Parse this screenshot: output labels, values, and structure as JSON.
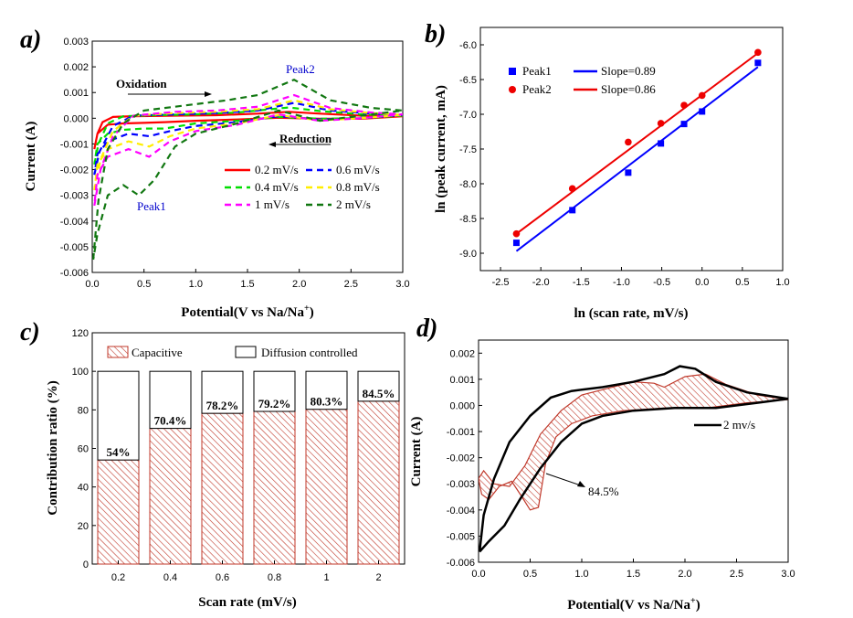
{
  "chart_data": [
    {
      "panel": "a)",
      "type": "line",
      "xlabel": "Potential(V vs Na/Na",
      "xlabel_sup": "+",
      "xlabel_end": ")",
      "ylabel": "Current (A)",
      "xlim": [
        0,
        3.0
      ],
      "ylim": [
        -0.006,
        0.003
      ],
      "xticks": [
        "0.0",
        "0.5",
        "1.0",
        "1.5",
        "2.0",
        "2.5",
        "3.0"
      ],
      "yticks": [
        "-0.006",
        "-0.005",
        "-0.004",
        "-0.003",
        "-0.002",
        "-0.001",
        "0.000",
        "0.001",
        "0.002",
        "0.003"
      ],
      "annotations": {
        "oxidation": "Oxidation",
        "reduction": "Reduction",
        "peak1": "Peak1",
        "peak2": "Peak2"
      },
      "series": [
        {
          "name": "0.2 mV/s",
          "color": "#ff0000",
          "dash": "solid",
          "points": [
            [
              0.02,
              -0.0012
            ],
            [
              0.05,
              -0.0006
            ],
            [
              0.1,
              -0.00015
            ],
            [
              0.2,
              5e-05
            ],
            [
              0.4,
              8e-05
            ],
            [
              0.8,
              0.0001
            ],
            [
              1.2,
              0.00012
            ],
            [
              1.6,
              0.00018
            ],
            [
              1.9,
              0.00025
            ],
            [
              2.2,
              0.00018
            ],
            [
              2.6,
              0.0001
            ],
            [
              3.0,
              8e-05
            ],
            [
              2.6,
              -2e-05
            ],
            [
              2.2,
              -2e-05
            ],
            [
              1.8,
              2e-05
            ],
            [
              1.4,
              -5e-05
            ],
            [
              1.0,
              -0.0001
            ],
            [
              0.7,
              -0.00015
            ],
            [
              0.5,
              -0.00018
            ],
            [
              0.3,
              -0.0002
            ],
            [
              0.15,
              -0.00025
            ],
            [
              0.05,
              -0.0006
            ],
            [
              0.02,
              -0.0012
            ]
          ]
        },
        {
          "name": "0.4 mV/s",
          "color": "#00dd00",
          "dash": "dashed",
          "points": [
            [
              0.02,
              -0.0018
            ],
            [
              0.06,
              -0.001
            ],
            [
              0.15,
              -0.0002
            ],
            [
              0.3,
              8e-05
            ],
            [
              0.6,
              0.00012
            ],
            [
              1.0,
              0.00015
            ],
            [
              1.4,
              0.00022
            ],
            [
              1.9,
              0.00042
            ],
            [
              2.2,
              0.00028
            ],
            [
              2.6,
              0.00015
            ],
            [
              3.0,
              0.0001
            ],
            [
              2.6,
              0.0
            ],
            [
              2.2,
              -2e-05
            ],
            [
              1.8,
              5e-05
            ],
            [
              1.4,
              -0.0001
            ],
            [
              1.0,
              -0.0002
            ],
            [
              0.7,
              -0.0004
            ],
            [
              0.5,
              -0.0004
            ],
            [
              0.3,
              -0.00045
            ],
            [
              0.15,
              -0.0006
            ],
            [
              0.05,
              -0.001
            ],
            [
              0.02,
              -0.0018
            ]
          ]
        },
        {
          "name": "0.6 mV/s",
          "color": "#0000ff",
          "dash": "dashed",
          "points": [
            [
              0.02,
              -0.0022
            ],
            [
              0.07,
              -0.0013
            ],
            [
              0.2,
              -0.0003
            ],
            [
              0.4,
              0.0001
            ],
            [
              0.8,
              0.00015
            ],
            [
              1.2,
              0.0002
            ],
            [
              1.6,
              0.0003
            ],
            [
              1.95,
              0.0006
            ],
            [
              2.3,
              0.0003
            ],
            [
              2.7,
              0.00018
            ],
            [
              3.0,
              0.00012
            ],
            [
              2.6,
              0.0
            ],
            [
              2.2,
              -5e-05
            ],
            [
              1.8,
              8e-05
            ],
            [
              1.4,
              -0.00015
            ],
            [
              1.0,
              -0.0003
            ],
            [
              0.75,
              -0.0005
            ],
            [
              0.55,
              -0.0007
            ],
            [
              0.35,
              -0.0006
            ],
            [
              0.15,
              -0.0009
            ],
            [
              0.05,
              -0.0014
            ],
            [
              0.02,
              -0.0022
            ]
          ]
        },
        {
          "name": "0.8 mV/s",
          "color": "#ffee00",
          "dash": "dashed",
          "points": [
            [
              0.02,
              -0.0028
            ],
            [
              0.08,
              -0.0016
            ],
            [
              0.2,
              -0.0005
            ],
            [
              0.4,
              0.0001
            ],
            [
              0.8,
              0.0002
            ],
            [
              1.2,
              0.00025
            ],
            [
              1.6,
              0.00035
            ],
            [
              1.95,
              0.0007
            ],
            [
              2.3,
              0.00035
            ],
            [
              2.7,
              0.0002
            ],
            [
              3.0,
              0.00013
            ],
            [
              2.6,
              0.0
            ],
            [
              2.2,
              -8e-05
            ],
            [
              1.8,
              0.00012
            ],
            [
              1.4,
              -0.0002
            ],
            [
              1.0,
              -0.0004
            ],
            [
              0.75,
              -0.0007
            ],
            [
              0.55,
              -0.0011
            ],
            [
              0.35,
              -0.0009
            ],
            [
              0.15,
              -0.0012
            ],
            [
              0.05,
              -0.0018
            ],
            [
              0.02,
              -0.0028
            ]
          ]
        },
        {
          "name": "1 mV/s",
          "color": "#ff00ff",
          "dash": "dashed",
          "points": [
            [
              0.02,
              -0.0034
            ],
            [
              0.08,
              -0.002
            ],
            [
              0.2,
              -0.0007
            ],
            [
              0.4,
              0.0001
            ],
            [
              0.8,
              0.00025
            ],
            [
              1.2,
              0.0003
            ],
            [
              1.6,
              0.00045
            ],
            [
              1.95,
              0.0009
            ],
            [
              2.3,
              0.0004
            ],
            [
              2.7,
              0.00022
            ],
            [
              3.0,
              0.00015
            ],
            [
              2.6,
              0.0
            ],
            [
              2.2,
              -0.0001
            ],
            [
              1.8,
              0.00015
            ],
            [
              1.4,
              -0.00025
            ],
            [
              1.0,
              -0.0005
            ],
            [
              0.75,
              -0.0009
            ],
            [
              0.55,
              -0.0015
            ],
            [
              0.35,
              -0.0012
            ],
            [
              0.15,
              -0.0015
            ],
            [
              0.05,
              -0.0022
            ],
            [
              0.02,
              -0.0034
            ]
          ]
        },
        {
          "name": "2 mV/s",
          "color": "#117711",
          "dash": "dashed",
          "points": [
            [
              0.01,
              -0.0055
            ],
            [
              0.06,
              -0.0032
            ],
            [
              0.15,
              -0.0012
            ],
            [
              0.3,
              -0.0002
            ],
            [
              0.5,
              0.0003
            ],
            [
              0.9,
              0.0005
            ],
            [
              1.3,
              0.0007
            ],
            [
              1.6,
              0.0009
            ],
            [
              1.95,
              0.0015
            ],
            [
              2.3,
              0.0007
            ],
            [
              2.7,
              0.0004
            ],
            [
              3.0,
              0.0003
            ],
            [
              2.6,
              0.0001
            ],
            [
              2.2,
              -0.0001
            ],
            [
              1.8,
              0.0003
            ],
            [
              1.4,
              -0.0002
            ],
            [
              1.0,
              -0.0006
            ],
            [
              0.8,
              -0.0011
            ],
            [
              0.6,
              -0.0024
            ],
            [
              0.45,
              -0.003
            ],
            [
              0.3,
              -0.0026
            ],
            [
              0.15,
              -0.003
            ],
            [
              0.05,
              -0.0045
            ],
            [
              0.01,
              -0.0055
            ]
          ]
        }
      ]
    },
    {
      "panel": "b)",
      "type": "scatter",
      "xlabel": "ln (scan rate, mV/s)",
      "ylabel": "ln (peak current, mA)",
      "xlim": [
        -2.75,
        1.0
      ],
      "ylim": [
        -9.25,
        -5.75
      ],
      "xticks": [
        "-2.5",
        "-2.0",
        "-1.5",
        "-1.0",
        "-0.5",
        "0.0",
        "0.5",
        "1.0"
      ],
      "yticks": [
        "-9.0",
        "-8.5",
        "-8.0",
        "-7.5",
        "-7.0",
        "-6.5",
        "-6.0"
      ],
      "series": [
        {
          "name": "Peak1",
          "marker": "square",
          "color": "#0000ff",
          "x": [
            -2.303,
            -1.609,
            -0.916,
            -0.511,
            -0.223,
            0.0,
            0.693
          ],
          "y": [
            -8.85,
            -8.38,
            -7.84,
            -7.42,
            -7.14,
            -6.96,
            -6.26
          ],
          "fit_label": "Slope=0.89",
          "fit": [
            [
              -2.303,
              -8.97
            ],
            [
              0.693,
              -6.32
            ]
          ]
        },
        {
          "name": "Peak2",
          "marker": "circle",
          "color": "#ee0000",
          "x": [
            -2.303,
            -1.609,
            -0.916,
            -0.511,
            -0.223,
            0.0,
            0.693
          ],
          "y": [
            -8.72,
            -8.07,
            -7.4,
            -7.13,
            -6.87,
            -6.73,
            -6.11
          ],
          "fit_label": "Slope=0.86",
          "fit": [
            [
              -2.303,
              -8.72
            ],
            [
              0.693,
              -6.12
            ]
          ]
        }
      ]
    },
    {
      "panel": "c)",
      "type": "bar",
      "xlabel": "Scan rate (mV/s)",
      "ylabel": "Contribution ratio (%)",
      "ylim": [
        0,
        120
      ],
      "yticks": [
        "0",
        "20",
        "40",
        "60",
        "80",
        "100",
        "120"
      ],
      "categories": [
        "0.2",
        "0.4",
        "0.6",
        "0.8",
        "1",
        "2"
      ],
      "series": [
        {
          "name": "Capacitive",
          "values": [
            54,
            70.4,
            78.2,
            79.2,
            80.3,
            84.5
          ]
        },
        {
          "name": "Diffusion controlled",
          "values": [
            46,
            29.6,
            21.8,
            20.8,
            19.7,
            15.5
          ]
        }
      ],
      "data_labels": [
        "54%",
        "70.4%",
        "78.2%",
        "79.2%",
        "80.3%",
        "84.5%"
      ]
    },
    {
      "panel": "d)",
      "type": "area",
      "xlabel": "Potential(V vs Na/Na",
      "xlabel_sup": "+",
      "xlabel_end": ")",
      "ylabel": "Current (A)",
      "xlim": [
        0,
        3.0
      ],
      "ylim": [
        -0.006,
        0.0025
      ],
      "xticks": [
        "0.0",
        "0.5",
        "1.0",
        "1.5",
        "2.0",
        "2.5",
        "3.0"
      ],
      "yticks": [
        "-0.006",
        "-0.005",
        "-0.004",
        "-0.003",
        "-0.002",
        "-0.001",
        "0.000",
        "0.001",
        "0.002"
      ],
      "legend": "2 mv/s",
      "annotation": "84.5%",
      "total": [
        [
          0.01,
          -0.0056
        ],
        [
          0.05,
          -0.0042
        ],
        [
          0.15,
          -0.0028
        ],
        [
          0.3,
          -0.0014
        ],
        [
          0.5,
          -0.0004
        ],
        [
          0.7,
          0.0003
        ],
        [
          0.9,
          0.00055
        ],
        [
          1.2,
          0.0007
        ],
        [
          1.5,
          0.0009
        ],
        [
          1.8,
          0.0012
        ],
        [
          1.95,
          0.0015
        ],
        [
          2.1,
          0.0014
        ],
        [
          2.3,
          0.0009
        ],
        [
          2.6,
          0.0005
        ],
        [
          3.0,
          0.00025
        ],
        [
          2.7,
          0.0001
        ],
        [
          2.3,
          -0.0001
        ],
        [
          1.9,
          -0.0001
        ],
        [
          1.5,
          -0.0002
        ],
        [
          1.2,
          -0.0004
        ],
        [
          1.0,
          -0.0007
        ],
        [
          0.8,
          -0.0014
        ],
        [
          0.6,
          -0.0024
        ],
        [
          0.4,
          -0.0036
        ],
        [
          0.25,
          -0.0046
        ],
        [
          0.1,
          -0.0052
        ],
        [
          0.01,
          -0.0056
        ]
      ],
      "capacitive": [
        [
          0.0,
          -0.0028
        ],
        [
          0.05,
          -0.0025
        ],
        [
          0.15,
          -0.003
        ],
        [
          0.3,
          -0.0031
        ],
        [
          0.45,
          -0.0023
        ],
        [
          0.6,
          -0.0011
        ],
        [
          0.8,
          -0.0002
        ],
        [
          1.0,
          0.0004
        ],
        [
          1.2,
          0.0006
        ],
        [
          1.5,
          0.0009
        ],
        [
          1.7,
          0.00085
        ],
        [
          1.8,
          0.0007
        ],
        [
          2.0,
          0.0011
        ],
        [
          2.2,
          0.0012
        ],
        [
          2.4,
          0.0008
        ],
        [
          2.7,
          0.0004
        ],
        [
          3.0,
          0.00022
        ],
        [
          2.6,
          0.0001
        ],
        [
          2.2,
          -0.0001
        ],
        [
          1.8,
          -0.0001
        ],
        [
          1.4,
          -0.0002
        ],
        [
          1.1,
          -0.0004
        ],
        [
          0.9,
          -0.0007
        ],
        [
          0.75,
          -0.0012
        ],
        [
          0.65,
          -0.0022
        ],
        [
          0.58,
          -0.0039
        ],
        [
          0.5,
          -0.004
        ],
        [
          0.42,
          -0.0035
        ],
        [
          0.32,
          -0.0029
        ],
        [
          0.2,
          -0.0031
        ],
        [
          0.1,
          -0.0036
        ],
        [
          0.03,
          -0.0034
        ],
        [
          0.0,
          -0.0028
        ]
      ]
    }
  ]
}
